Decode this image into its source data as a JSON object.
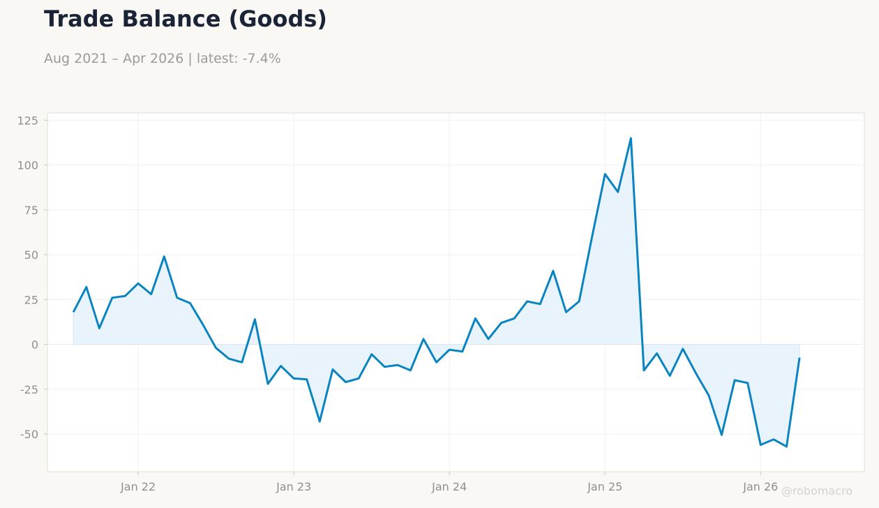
{
  "header": {
    "title": "Trade Balance (Goods)",
    "subtitle": "Aug 2021 – Apr 2026 | latest: -7.4%"
  },
  "watermark": "@robomacro",
  "colors": {
    "background": "#f9f8f5",
    "plot_background": "#ffffff",
    "line": "#0a84c1",
    "fill": "#e9f3fb",
    "grid": "#f0f0f0",
    "axis_text": "#8f8f8f"
  },
  "chart_data": {
    "type": "area",
    "title": "Trade Balance (Goods)",
    "xlabel": "",
    "ylabel": "",
    "x": [
      "2021-08",
      "2021-09",
      "2021-10",
      "2021-11",
      "2021-12",
      "2022-01",
      "2022-02",
      "2022-03",
      "2022-04",
      "2022-05",
      "2022-06",
      "2022-07",
      "2022-08",
      "2022-09",
      "2022-10",
      "2022-11",
      "2022-12",
      "2023-01",
      "2023-02",
      "2023-03",
      "2023-04",
      "2023-05",
      "2023-06",
      "2023-07",
      "2023-08",
      "2023-09",
      "2023-10",
      "2023-11",
      "2023-12",
      "2024-01",
      "2024-02",
      "2024-03",
      "2024-04",
      "2024-05",
      "2024-06",
      "2024-07",
      "2024-08",
      "2024-09",
      "2024-10",
      "2024-11",
      "2024-12",
      "2025-01",
      "2025-02",
      "2025-03",
      "2025-04",
      "2025-05",
      "2025-06",
      "2025-07",
      "2025-08",
      "2025-09",
      "2025-10",
      "2025-11",
      "2025-12",
      "2026-01",
      "2026-02",
      "2026-03",
      "2026-04"
    ],
    "series": [
      {
        "values": [
          18,
          32,
          9,
          26,
          27,
          34,
          28,
          49,
          26,
          23,
          11,
          -2,
          -8,
          -10,
          14,
          -22,
          -12,
          -19,
          -19.5,
          -43,
          -14,
          -21,
          -19,
          -5.5,
          -12.5,
          -11.5,
          -14.5,
          3,
          -10,
          -3,
          -4,
          14.5,
          3,
          12,
          14.5,
          24,
          22.5,
          41,
          18,
          24,
          60,
          95,
          85,
          115,
          -14.5,
          -5,
          -17.5,
          -2.5,
          -16,
          -28.5,
          -50.5,
          -20,
          -21.5,
          -56,
          -53,
          -57,
          -7.4
        ]
      }
    ],
    "ylim": [
      -71,
      129
    ],
    "yticks": [
      -50,
      -25,
      0,
      25,
      50,
      75,
      100,
      125
    ],
    "ytick_labels": [
      "-50",
      "-25",
      "0",
      "25",
      "50",
      "75",
      "100",
      "125"
    ],
    "xticks": [
      "2022-01",
      "2023-01",
      "2024-01",
      "2025-01",
      "2026-01"
    ],
    "xtick_labels": [
      "Jan 22",
      "Jan 23",
      "Jan 24",
      "Jan 25",
      "Jan 26"
    ],
    "xlim": [
      "2021-06",
      "2026-09"
    ],
    "fill_to_zero": true,
    "grid": true,
    "legend": "none"
  }
}
